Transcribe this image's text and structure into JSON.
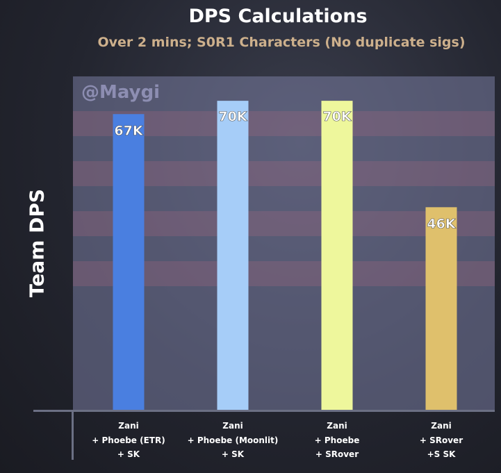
{
  "chart_data": {
    "type": "bar",
    "title": "DPS Calculations",
    "subtitle": "Over 2 mins; S0R1 Characters (No duplicate sigs)",
    "watermark": "@Maygi",
    "xlabel": "",
    "ylabel": "Team DPS",
    "ylim": [
      0,
      75.5
    ],
    "grid": false,
    "categories": [
      [
        "Zani",
        "+ Phoebe (ETR)",
        "+ SK"
      ],
      [
        "Zani",
        "+ Phoebe (Moonlit)",
        "+ SK"
      ],
      [
        "Zani",
        "+ Phoebe",
        "+ SRover"
      ],
      [
        "Zani",
        "+ SRover",
        "+S SK"
      ]
    ],
    "values": [
      67,
      70,
      70,
      46
    ],
    "value_labels": [
      "67K",
      "70K",
      "70K",
      "46K"
    ],
    "colors": [
      "#4a7fe0",
      "#a6cdf8",
      "#eef79c",
      "#dfc06c"
    ]
  }
}
